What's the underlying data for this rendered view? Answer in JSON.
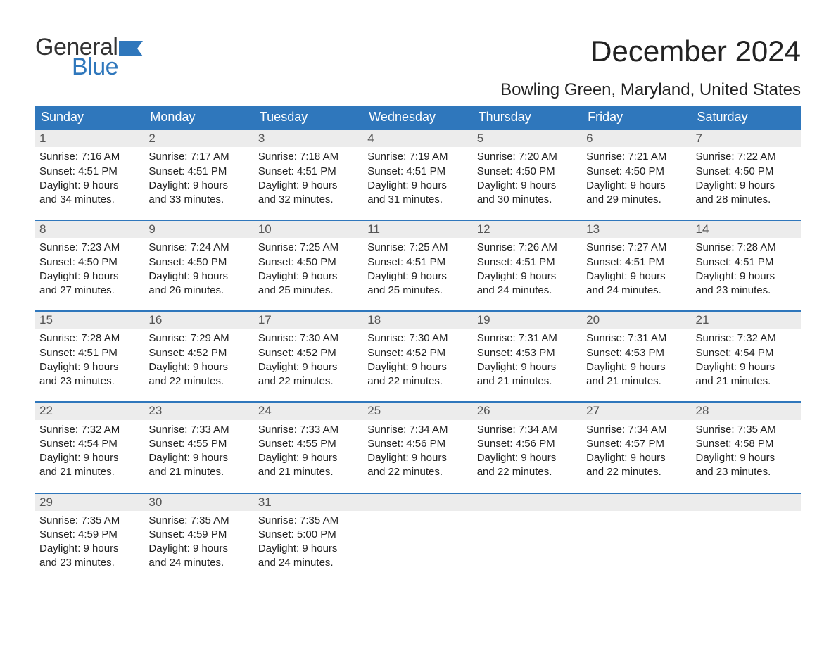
{
  "logo": {
    "text1": "General",
    "text2": "Blue",
    "flag_color": "#2f77bc"
  },
  "title": "December 2024",
  "location": "Bowling Green, Maryland, United States",
  "colors": {
    "header_bg": "#2f77bc",
    "header_text": "#ffffff",
    "daynum_bg": "#ececec",
    "daynum_text": "#555555",
    "body_text": "#222222",
    "rule": "#2f77bc"
  },
  "day_headers": [
    "Sunday",
    "Monday",
    "Tuesday",
    "Wednesday",
    "Thursday",
    "Friday",
    "Saturday"
  ],
  "weeks": [
    [
      {
        "n": "1",
        "sr": "Sunrise: 7:16 AM",
        "ss": "Sunset: 4:51 PM",
        "d1": "Daylight: 9 hours",
        "d2": "and 34 minutes."
      },
      {
        "n": "2",
        "sr": "Sunrise: 7:17 AM",
        "ss": "Sunset: 4:51 PM",
        "d1": "Daylight: 9 hours",
        "d2": "and 33 minutes."
      },
      {
        "n": "3",
        "sr": "Sunrise: 7:18 AM",
        "ss": "Sunset: 4:51 PM",
        "d1": "Daylight: 9 hours",
        "d2": "and 32 minutes."
      },
      {
        "n": "4",
        "sr": "Sunrise: 7:19 AM",
        "ss": "Sunset: 4:51 PM",
        "d1": "Daylight: 9 hours",
        "d2": "and 31 minutes."
      },
      {
        "n": "5",
        "sr": "Sunrise: 7:20 AM",
        "ss": "Sunset: 4:50 PM",
        "d1": "Daylight: 9 hours",
        "d2": "and 30 minutes."
      },
      {
        "n": "6",
        "sr": "Sunrise: 7:21 AM",
        "ss": "Sunset: 4:50 PM",
        "d1": "Daylight: 9 hours",
        "d2": "and 29 minutes."
      },
      {
        "n": "7",
        "sr": "Sunrise: 7:22 AM",
        "ss": "Sunset: 4:50 PM",
        "d1": "Daylight: 9 hours",
        "d2": "and 28 minutes."
      }
    ],
    [
      {
        "n": "8",
        "sr": "Sunrise: 7:23 AM",
        "ss": "Sunset: 4:50 PM",
        "d1": "Daylight: 9 hours",
        "d2": "and 27 minutes."
      },
      {
        "n": "9",
        "sr": "Sunrise: 7:24 AM",
        "ss": "Sunset: 4:50 PM",
        "d1": "Daylight: 9 hours",
        "d2": "and 26 minutes."
      },
      {
        "n": "10",
        "sr": "Sunrise: 7:25 AM",
        "ss": "Sunset: 4:50 PM",
        "d1": "Daylight: 9 hours",
        "d2": "and 25 minutes."
      },
      {
        "n": "11",
        "sr": "Sunrise: 7:25 AM",
        "ss": "Sunset: 4:51 PM",
        "d1": "Daylight: 9 hours",
        "d2": "and 25 minutes."
      },
      {
        "n": "12",
        "sr": "Sunrise: 7:26 AM",
        "ss": "Sunset: 4:51 PM",
        "d1": "Daylight: 9 hours",
        "d2": "and 24 minutes."
      },
      {
        "n": "13",
        "sr": "Sunrise: 7:27 AM",
        "ss": "Sunset: 4:51 PM",
        "d1": "Daylight: 9 hours",
        "d2": "and 24 minutes."
      },
      {
        "n": "14",
        "sr": "Sunrise: 7:28 AM",
        "ss": "Sunset: 4:51 PM",
        "d1": "Daylight: 9 hours",
        "d2": "and 23 minutes."
      }
    ],
    [
      {
        "n": "15",
        "sr": "Sunrise: 7:28 AM",
        "ss": "Sunset: 4:51 PM",
        "d1": "Daylight: 9 hours",
        "d2": "and 23 minutes."
      },
      {
        "n": "16",
        "sr": "Sunrise: 7:29 AM",
        "ss": "Sunset: 4:52 PM",
        "d1": "Daylight: 9 hours",
        "d2": "and 22 minutes."
      },
      {
        "n": "17",
        "sr": "Sunrise: 7:30 AM",
        "ss": "Sunset: 4:52 PM",
        "d1": "Daylight: 9 hours",
        "d2": "and 22 minutes."
      },
      {
        "n": "18",
        "sr": "Sunrise: 7:30 AM",
        "ss": "Sunset: 4:52 PM",
        "d1": "Daylight: 9 hours",
        "d2": "and 22 minutes."
      },
      {
        "n": "19",
        "sr": "Sunrise: 7:31 AM",
        "ss": "Sunset: 4:53 PM",
        "d1": "Daylight: 9 hours",
        "d2": "and 21 minutes."
      },
      {
        "n": "20",
        "sr": "Sunrise: 7:31 AM",
        "ss": "Sunset: 4:53 PM",
        "d1": "Daylight: 9 hours",
        "d2": "and 21 minutes."
      },
      {
        "n": "21",
        "sr": "Sunrise: 7:32 AM",
        "ss": "Sunset: 4:54 PM",
        "d1": "Daylight: 9 hours",
        "d2": "and 21 minutes."
      }
    ],
    [
      {
        "n": "22",
        "sr": "Sunrise: 7:32 AM",
        "ss": "Sunset: 4:54 PM",
        "d1": "Daylight: 9 hours",
        "d2": "and 21 minutes."
      },
      {
        "n": "23",
        "sr": "Sunrise: 7:33 AM",
        "ss": "Sunset: 4:55 PM",
        "d1": "Daylight: 9 hours",
        "d2": "and 21 minutes."
      },
      {
        "n": "24",
        "sr": "Sunrise: 7:33 AM",
        "ss": "Sunset: 4:55 PM",
        "d1": "Daylight: 9 hours",
        "d2": "and 21 minutes."
      },
      {
        "n": "25",
        "sr": "Sunrise: 7:34 AM",
        "ss": "Sunset: 4:56 PM",
        "d1": "Daylight: 9 hours",
        "d2": "and 22 minutes."
      },
      {
        "n": "26",
        "sr": "Sunrise: 7:34 AM",
        "ss": "Sunset: 4:56 PM",
        "d1": "Daylight: 9 hours",
        "d2": "and 22 minutes."
      },
      {
        "n": "27",
        "sr": "Sunrise: 7:34 AM",
        "ss": "Sunset: 4:57 PM",
        "d1": "Daylight: 9 hours",
        "d2": "and 22 minutes."
      },
      {
        "n": "28",
        "sr": "Sunrise: 7:35 AM",
        "ss": "Sunset: 4:58 PM",
        "d1": "Daylight: 9 hours",
        "d2": "and 23 minutes."
      }
    ],
    [
      {
        "n": "29",
        "sr": "Sunrise: 7:35 AM",
        "ss": "Sunset: 4:59 PM",
        "d1": "Daylight: 9 hours",
        "d2": "and 23 minutes."
      },
      {
        "n": "30",
        "sr": "Sunrise: 7:35 AM",
        "ss": "Sunset: 4:59 PM",
        "d1": "Daylight: 9 hours",
        "d2": "and 24 minutes."
      },
      {
        "n": "31",
        "sr": "Sunrise: 7:35 AM",
        "ss": "Sunset: 5:00 PM",
        "d1": "Daylight: 9 hours",
        "d2": "and 24 minutes."
      },
      null,
      null,
      null,
      null
    ]
  ]
}
